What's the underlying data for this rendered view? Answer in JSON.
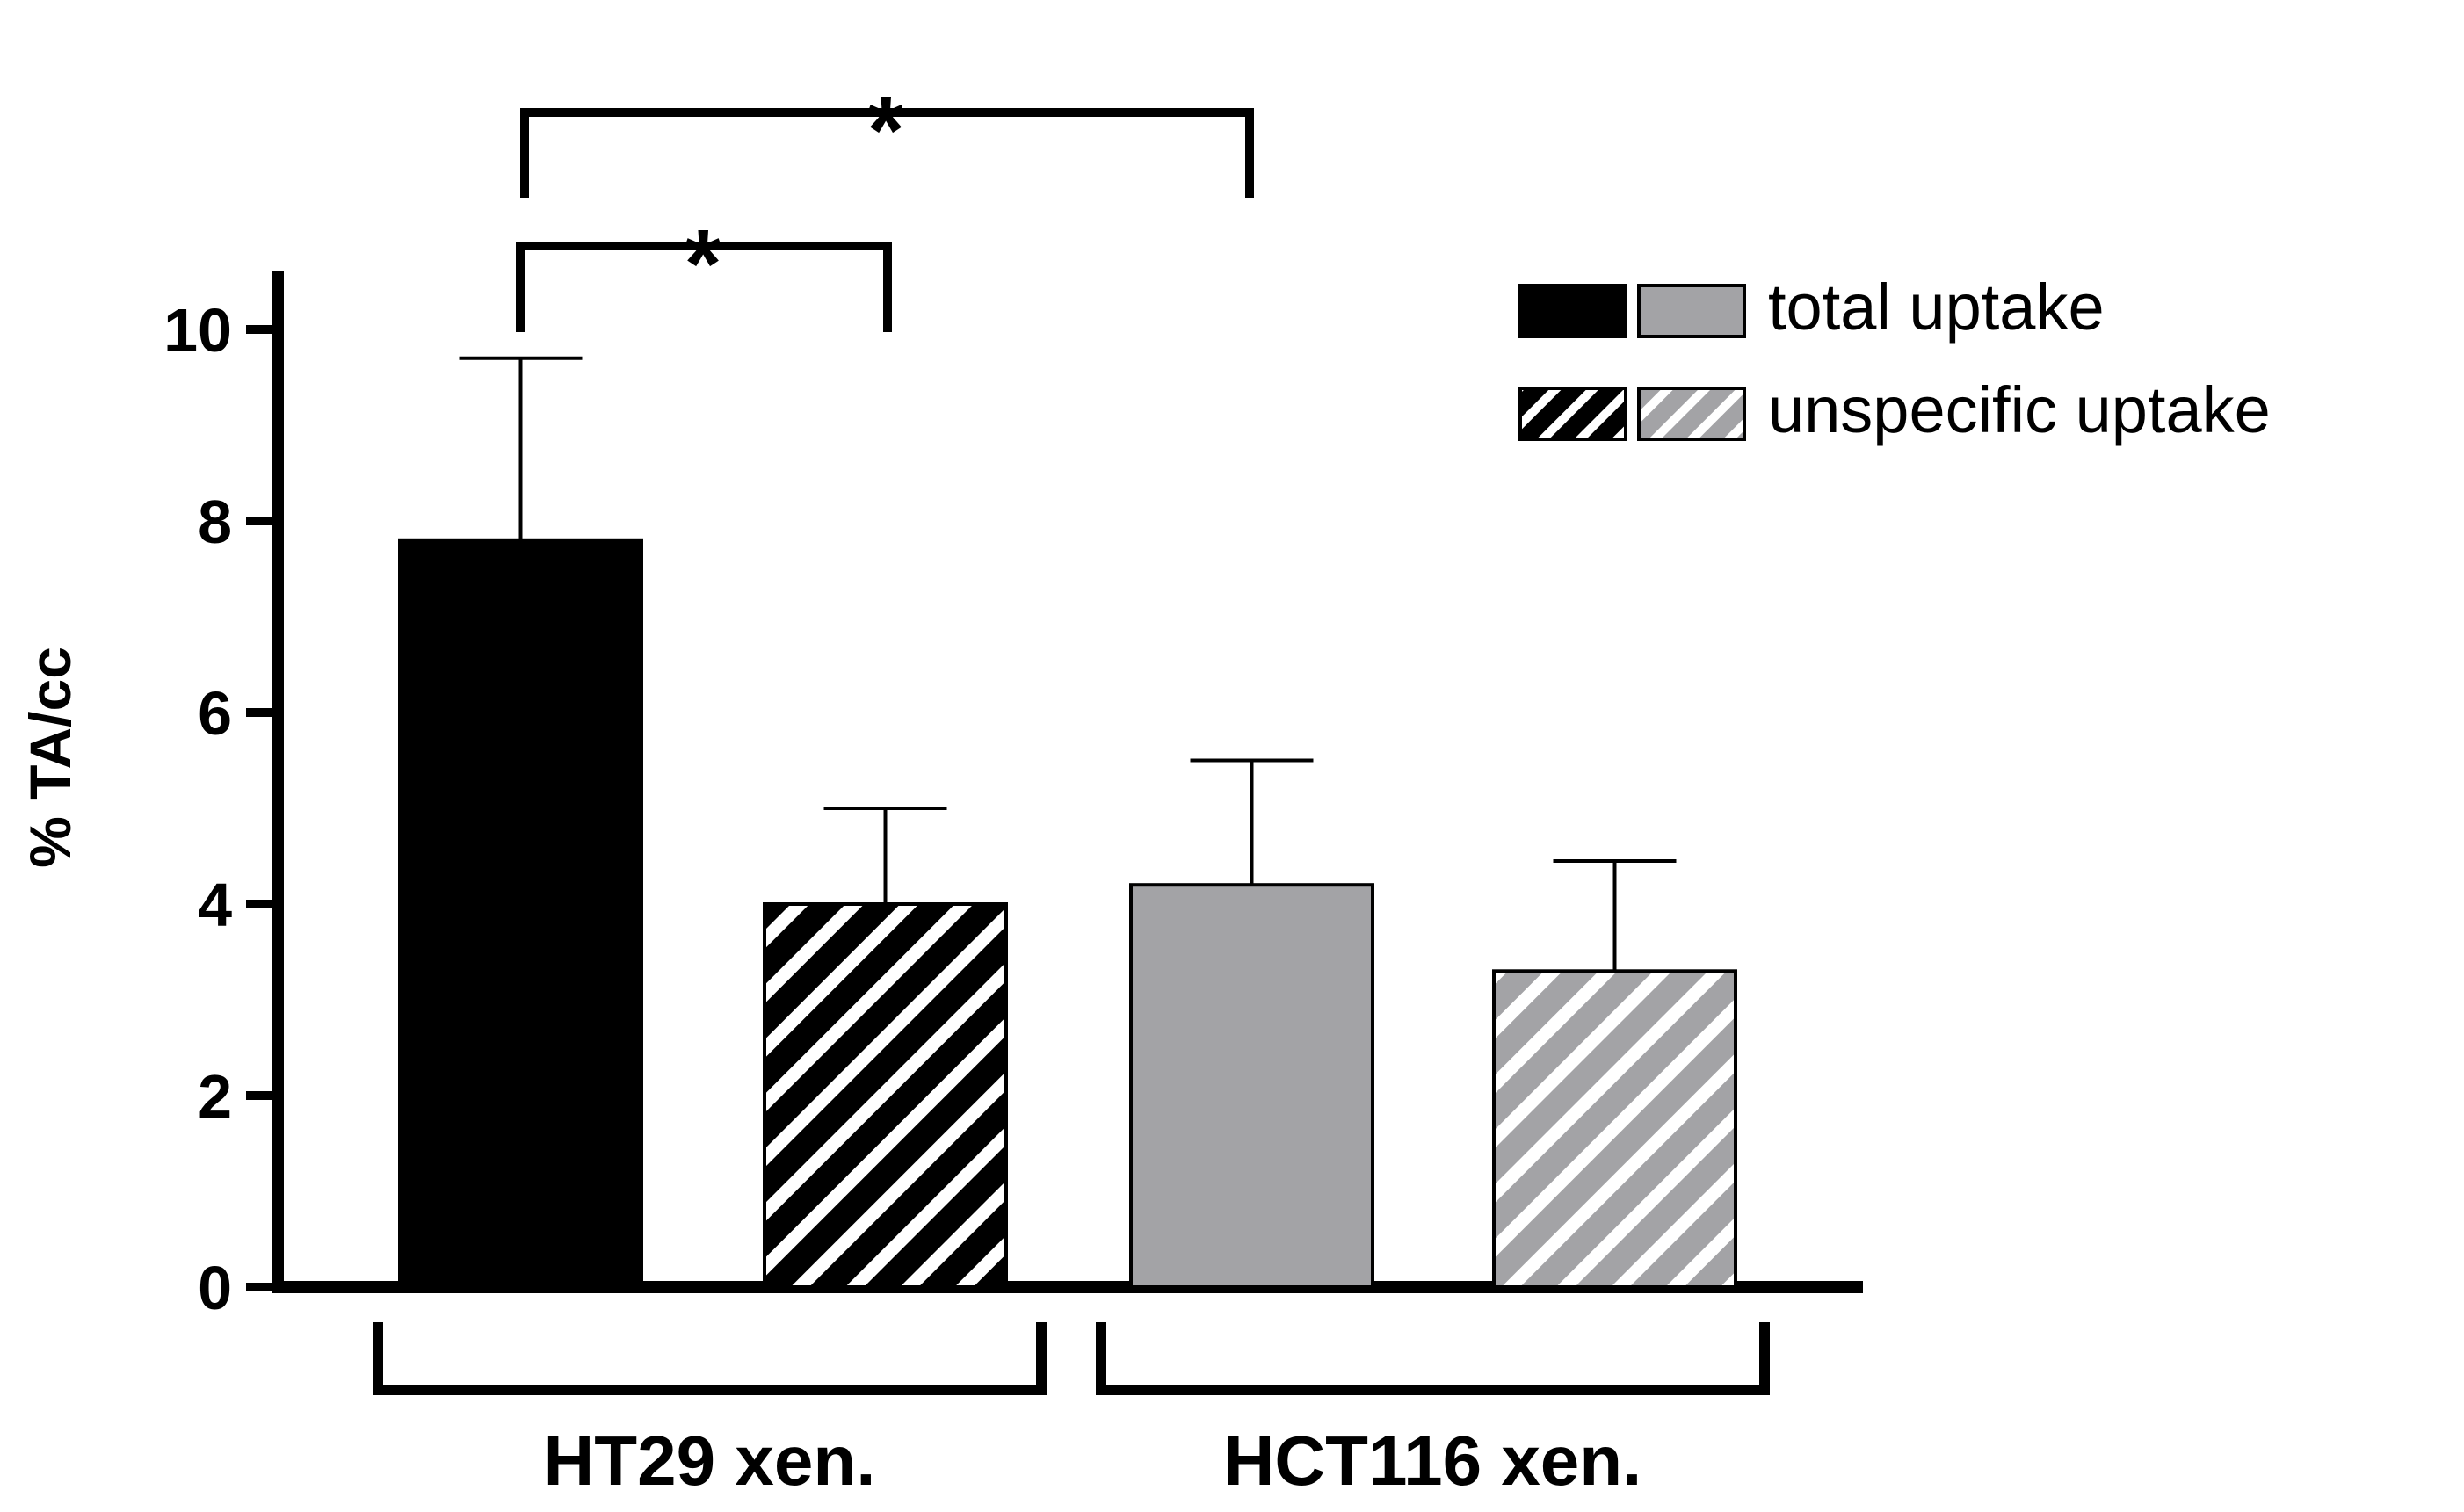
{
  "chart_data": {
    "type": "bar",
    "ylabel": "% TA/cc",
    "ylim": [
      0,
      10.5
    ],
    "yticks": [
      0,
      2,
      4,
      6,
      8,
      10
    ],
    "grid": false,
    "legend_position": "top-right",
    "bars": [
      {
        "group": "HT29 xen.",
        "series": "total uptake",
        "value": 7.8,
        "error": 1.9,
        "color": "#000000",
        "hatched": false
      },
      {
        "group": "HT29 xen.",
        "series": "unspecific uptake",
        "value": 4.0,
        "error": 1.0,
        "color": "#000000",
        "hatched": true
      },
      {
        "group": "HCT116 xen.",
        "series": "total uptake",
        "value": 4.2,
        "error": 1.3,
        "color": "#a3a3a6",
        "hatched": false
      },
      {
        "group": "HCT116 xen.",
        "series": "unspecific uptake",
        "value": 3.3,
        "error": 1.15,
        "color": "#a3a3a6",
        "hatched": true
      }
    ],
    "groups": [
      "HT29 xen.",
      "HCT116 xen."
    ],
    "legend": [
      {
        "label": "total uptake",
        "hatched": false,
        "colors": [
          "#000000",
          "#a3a3a6"
        ]
      },
      {
        "label": "unspecific uptake",
        "hatched": true,
        "colors": [
          "#000000",
          "#a3a3a6"
        ]
      }
    ],
    "significance": [
      {
        "from_bar": 0,
        "to_bar": 1,
        "label": "*"
      },
      {
        "from_bar": 0,
        "to_bar": 2,
        "label": "*"
      }
    ]
  }
}
